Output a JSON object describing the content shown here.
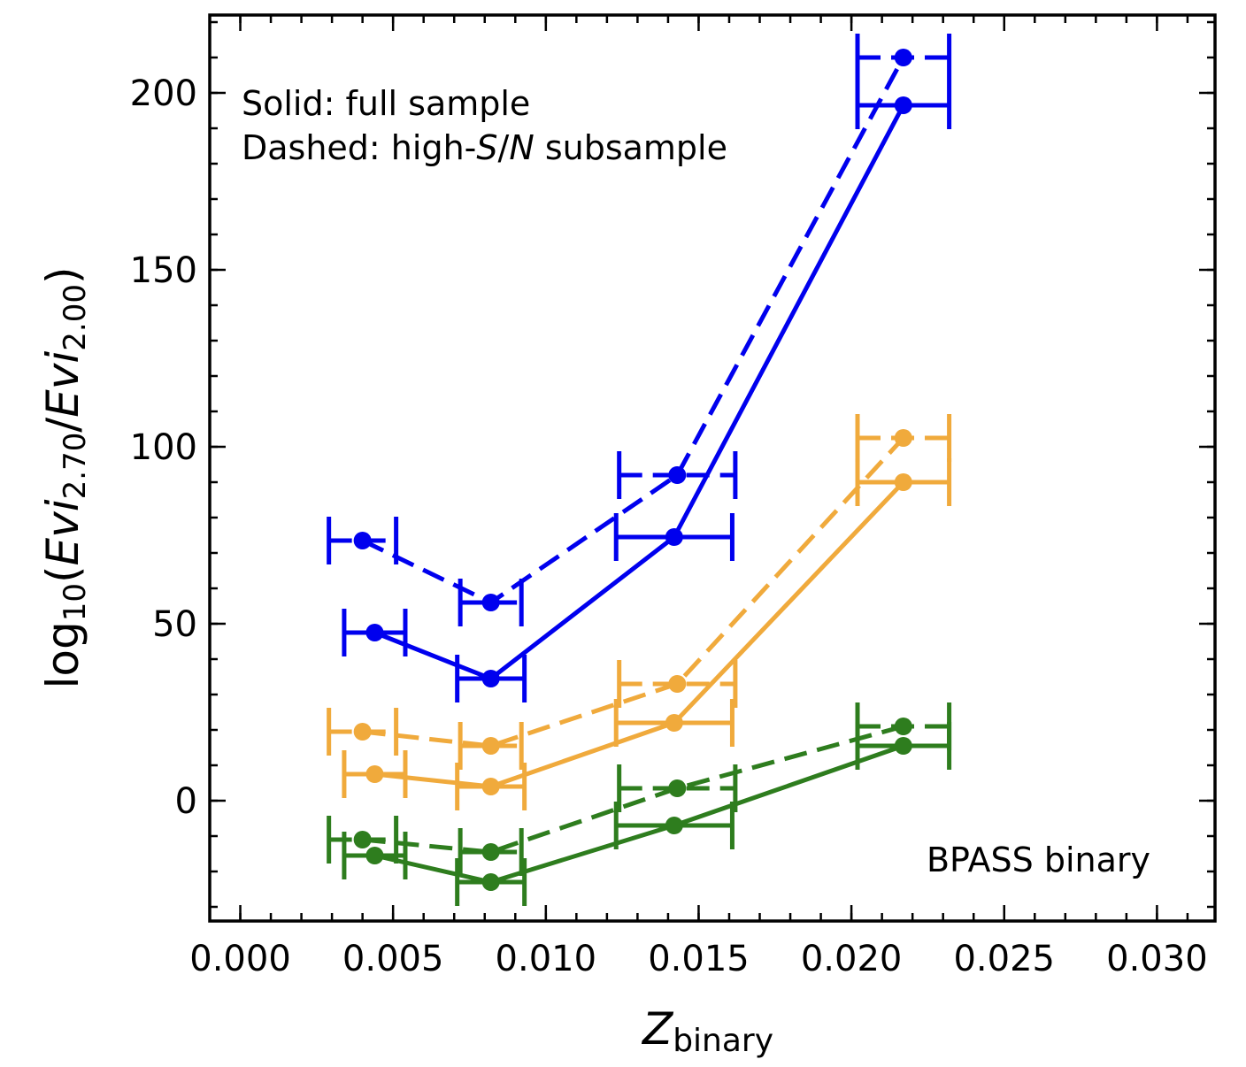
{
  "chart_data": {
    "type": "line",
    "xlabel": "Z",
    "xlabel_sub": "binary",
    "ylabel": {
      "prefix": "log",
      "prefix_sub": "10",
      "open": "(",
      "num": "Evi",
      "num_sub": "2.70",
      "slash": "/",
      "den": "Evi",
      "den_sub": "2.00",
      "close": ")"
    },
    "xlim": [
      -0.001,
      0.0319
    ],
    "ylim": [
      -34,
      222
    ],
    "x_major_ticks": [
      0.0,
      0.005,
      0.01,
      0.015,
      0.02,
      0.025,
      0.03
    ],
    "x_tick_labels": [
      "0.000",
      "0.005",
      "0.010",
      "0.015",
      "0.020",
      "0.025",
      "0.030"
    ],
    "y_major_ticks": [
      0,
      50,
      100,
      150,
      200
    ],
    "y_tick_labels": [
      "0",
      "50",
      "100",
      "150",
      "200"
    ],
    "x_minor_step": 0.001,
    "y_minor_step": 10,
    "annotations": {
      "line1": "Solid: full sample",
      "line2_a": "Dashed: high-",
      "line2_s": "S",
      "line2_slash": "/",
      "line2_n": "N",
      "line2_b": " subsample",
      "model": "BPASS binary"
    },
    "series": [
      {
        "name": "blue-dashed",
        "color": "#0000ee",
        "style": "dashed",
        "points": [
          {
            "x": 0.004,
            "y": 73.5,
            "xerr": 0.0011
          },
          {
            "x": 0.0082,
            "y": 56.0,
            "xerr": 0.001
          },
          {
            "x": 0.0143,
            "y": 92.0,
            "xerr": 0.0019
          },
          {
            "x": 0.0217,
            "y": 210.0,
            "xerr": 0.0015
          }
        ]
      },
      {
        "name": "blue-solid",
        "color": "#0000ee",
        "style": "solid",
        "points": [
          {
            "x": 0.0044,
            "y": 47.5,
            "xerr": 0.001
          },
          {
            "x": 0.0082,
            "y": 34.5,
            "xerr": 0.0011
          },
          {
            "x": 0.0142,
            "y": 74.5,
            "xerr": 0.0019
          },
          {
            "x": 0.0217,
            "y": 196.5,
            "xerr": 0.0015
          }
        ]
      },
      {
        "name": "orange-dashed",
        "color": "#f0aa3c",
        "style": "dashed",
        "points": [
          {
            "x": 0.004,
            "y": 19.5,
            "xerr": 0.0011
          },
          {
            "x": 0.0082,
            "y": 15.5,
            "xerr": 0.001
          },
          {
            "x": 0.0143,
            "y": 33.0,
            "xerr": 0.0019
          },
          {
            "x": 0.0217,
            "y": 102.5,
            "xerr": 0.0015
          }
        ]
      },
      {
        "name": "orange-solid",
        "color": "#f0aa3c",
        "style": "solid",
        "points": [
          {
            "x": 0.0044,
            "y": 7.5,
            "xerr": 0.001
          },
          {
            "x": 0.0082,
            "y": 4.0,
            "xerr": 0.0011
          },
          {
            "x": 0.0142,
            "y": 22.0,
            "xerr": 0.0019
          },
          {
            "x": 0.0217,
            "y": 90.0,
            "xerr": 0.0015
          }
        ]
      },
      {
        "name": "green-dashed",
        "color": "#2e7d1e",
        "style": "dashed",
        "points": [
          {
            "x": 0.004,
            "y": -11.0,
            "xerr": 0.0011
          },
          {
            "x": 0.0082,
            "y": -14.5,
            "xerr": 0.001
          },
          {
            "x": 0.0143,
            "y": 3.5,
            "xerr": 0.0019
          },
          {
            "x": 0.0217,
            "y": 21.0,
            "xerr": 0.0015
          }
        ]
      },
      {
        "name": "green-solid",
        "color": "#2e7d1e",
        "style": "solid",
        "points": [
          {
            "x": 0.0044,
            "y": -15.5,
            "xerr": 0.001
          },
          {
            "x": 0.0082,
            "y": -23.0,
            "xerr": 0.0011
          },
          {
            "x": 0.0142,
            "y": -7.0,
            "xerr": 0.0019
          },
          {
            "x": 0.0217,
            "y": 15.5,
            "xerr": 0.0015
          }
        ]
      }
    ]
  }
}
